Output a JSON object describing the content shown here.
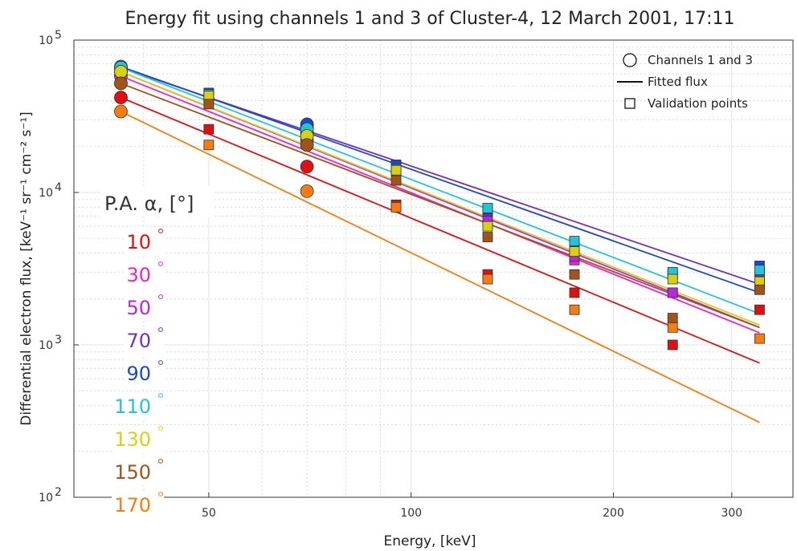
{
  "chart_data": {
    "type": "scatter",
    "title": "Energy fit using channels 1 and 3 of Cluster-4, 12 March 2001, 17:11",
    "xlabel": "Energy, [keV]",
    "ylabel": "Differential electron flux, [keV⁻¹ sr⁻¹ cm⁻² s⁻¹]",
    "xscale": "log",
    "yscale": "log",
    "xlim": [
      31.5,
      370
    ],
    "ylim": [
      100,
      100000
    ],
    "xticks": [
      50,
      100,
      200,
      300
    ],
    "yticks": [
      {
        "value": 100,
        "base": "10",
        "exp": "2"
      },
      {
        "value": 1000,
        "base": "10",
        "exp": "3"
      },
      {
        "value": 10000,
        "base": "10",
        "exp": "4"
      },
      {
        "value": 100000,
        "base": "10",
        "exp": "5"
      }
    ],
    "grid": true,
    "legend_position": "top-right",
    "legend": [
      {
        "symbol": "circle",
        "label": "Channels 1 and 3"
      },
      {
        "symbol": "line",
        "label": "Fitted flux"
      },
      {
        "symbol": "square",
        "label": "Validation points"
      }
    ],
    "pitch_angle_header": "P.A. α, [°]",
    "channel_energies": [
      37,
      70
    ],
    "validation_energies": [
      50,
      95,
      130,
      175,
      245,
      330
    ],
    "fit_range": [
      37,
      330
    ],
    "series": [
      {
        "name": "10°",
        "color": "#e01010",
        "circles": [
          42000,
          14800
        ],
        "squares": [
          26000,
          8300,
          2900,
          2200,
          1000,
          1700
        ],
        "fit": [
          42000,
          760
        ]
      },
      {
        "name": "30°",
        "color": "#ee22cc",
        "circles": [
          58000,
          22000
        ],
        "squares": [
          40000,
          13800,
          6200,
          3600,
          2200,
          2500
        ],
        "fit": [
          58000,
          1200
        ]
      },
      {
        "name": "50°",
        "color": "#b428e0",
        "circles": [
          62000,
          24500
        ],
        "squares": [
          42000,
          14500,
          6700,
          3800,
          2200,
          2700
        ],
        "fit": [
          62000,
          1300
        ]
      },
      {
        "name": "70°",
        "color": "#7030c0",
        "circles": [
          66000,
          27000
        ],
        "squares": [
          44000,
          15000,
          7500,
          4200,
          2900,
          3000
        ],
        "fit": [
          66000,
          2500
        ]
      },
      {
        "name": "90°",
        "color": "#1a48d0",
        "circles": [
          67000,
          28000
        ],
        "squares": [
          45000,
          15200,
          7800,
          4500,
          2900,
          3300
        ],
        "fit": [
          67000,
          2200
        ]
      },
      {
        "name": "110°",
        "color": "#22c4d8",
        "circles": [
          66000,
          26000
        ],
        "squares": [
          44000,
          14200,
          7900,
          4800,
          3000,
          3100
        ],
        "fit": [
          66000,
          1600
        ]
      },
      {
        "name": "130°",
        "color": "#d8d010",
        "circles": [
          62000,
          23500
        ],
        "squares": [
          43000,
          14000,
          6000,
          4100,
          2700,
          2600
        ],
        "fit": [
          62000,
          1350
        ]
      },
      {
        "name": "150°",
        "color": "#a0541a",
        "circles": [
          52000,
          20500
        ],
        "squares": [
          38000,
          12000,
          5100,
          2900,
          1500,
          2300
        ],
        "fit": [
          52000,
          1300
        ]
      },
      {
        "name": "170°",
        "color": "#f57d10",
        "circles": [
          34000,
          10200
        ],
        "squares": [
          20500,
          8000,
          2700,
          1700,
          1300,
          1100
        ],
        "fit": [
          34000,
          310
        ]
      }
    ]
  }
}
